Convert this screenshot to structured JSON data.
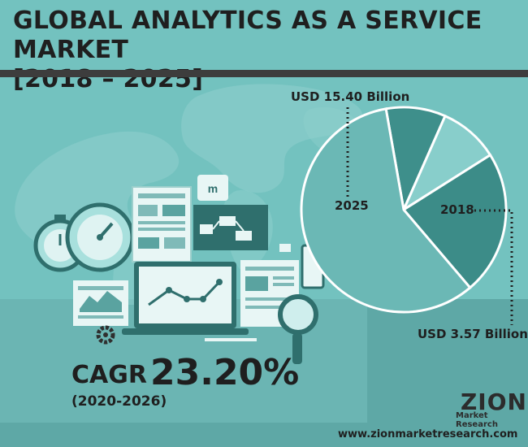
{
  "header": {
    "title_line1": "GLOBAL ANALYTICS AS A SERVICE MARKET",
    "title_line2": "[2018 – 2025]"
  },
  "chart_data": {
    "type": "pie",
    "categories": [
      "2025",
      "2018"
    ],
    "values": [
      15.4,
      3.57
    ],
    "value_labels": [
      "USD 15.40 Billion",
      "USD 3.57 Billion"
    ],
    "title": "",
    "unit": "USD Billion",
    "colors": {
      "slice_2025_main": "#3c8c88",
      "slice_2025_light": "#6bb8b5",
      "slice_2018_main": "#3e8f8b",
      "slice_2018_light": "#88cecb",
      "leader": "#222222"
    }
  },
  "cagr": {
    "label": "CAGR",
    "value": "23.20%",
    "period": "(2020-2026)"
  },
  "footer": {
    "logo_main": "ZION",
    "logo_sub": "Market Research",
    "website": "www.zionmarketresearch.com"
  },
  "colors": {
    "background": "#73c2bf",
    "dark_text": "#1f1f1f",
    "rule": "#3d3d3d"
  },
  "icons": [
    "world-map-icon",
    "stopwatch-icon",
    "gauge-icon",
    "report-icon",
    "laptop-icon",
    "line-chart-icon",
    "magnifier-icon",
    "gear-icon",
    "pen-icon",
    "tablet-icon"
  ]
}
